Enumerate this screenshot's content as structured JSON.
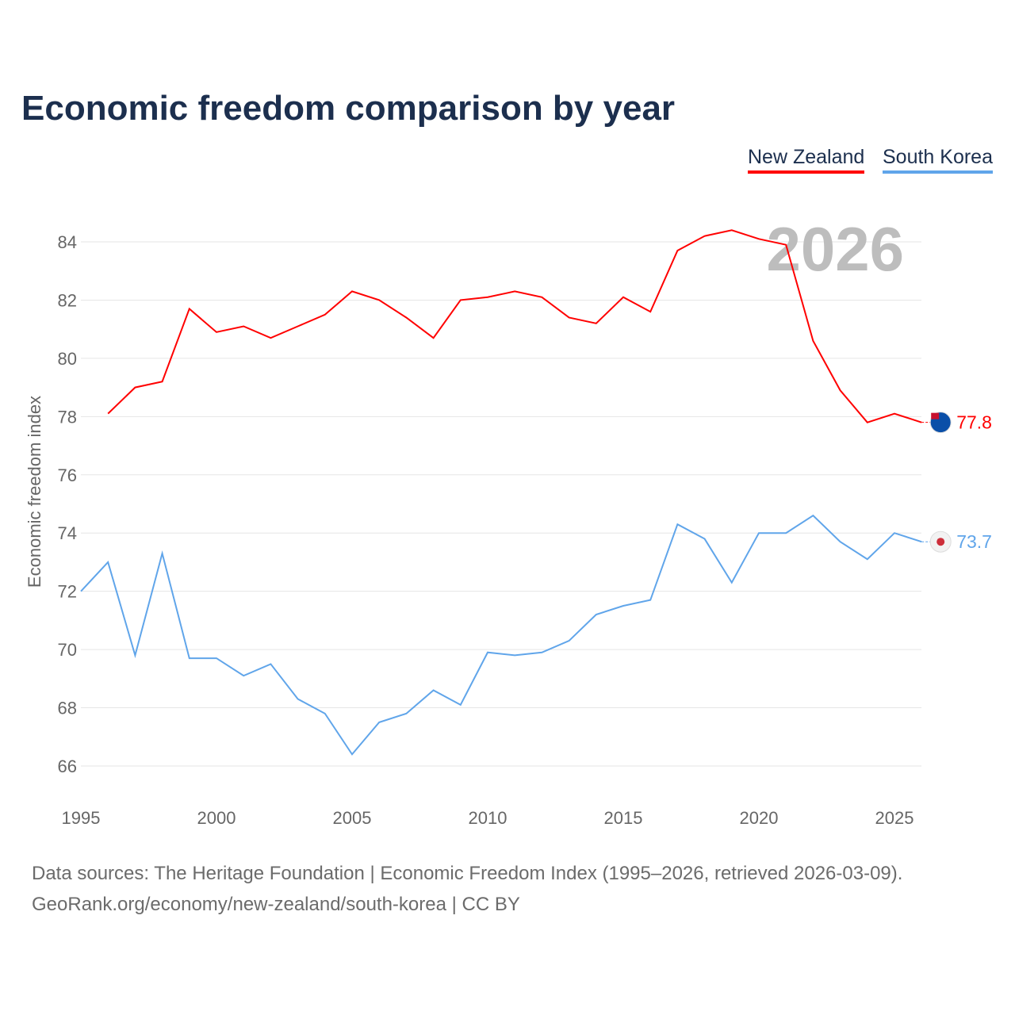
{
  "chart_data": {
    "type": "line",
    "title": "Economic freedom comparison by year",
    "xlabel": "",
    "ylabel": "Economic freedom index",
    "xlim": [
      1995,
      2026
    ],
    "ylim": [
      65,
      85.5
    ],
    "x_ticks": [
      "1995",
      "2000",
      "2005",
      "2010",
      "2015",
      "2020",
      "2025"
    ],
    "y_ticks": [
      "66",
      "68",
      "70",
      "72",
      "74",
      "76",
      "78",
      "80",
      "82",
      "84"
    ],
    "grid": true,
    "year_watermark": "2026",
    "series": [
      {
        "name": "New Zealand",
        "color": "#ff0000",
        "end_label": "77.8",
        "x": [
          1996,
          1997,
          1998,
          1999,
          2000,
          2001,
          2002,
          2003,
          2004,
          2005,
          2006,
          2007,
          2008,
          2009,
          2010,
          2011,
          2012,
          2013,
          2014,
          2015,
          2016,
          2017,
          2018,
          2019,
          2020,
          2021,
          2022,
          2023,
          2024,
          2025,
          2026
        ],
        "values": [
          78.1,
          79.0,
          79.2,
          81.7,
          80.9,
          81.1,
          80.7,
          81.1,
          81.5,
          82.3,
          82.0,
          81.4,
          80.7,
          82.0,
          82.1,
          82.3,
          82.1,
          81.4,
          81.2,
          82.1,
          81.6,
          83.7,
          84.2,
          84.4,
          84.1,
          83.9,
          80.6,
          78.9,
          77.8,
          78.1,
          77.8
        ]
      },
      {
        "name": "South Korea",
        "color": "#60a5ea",
        "end_label": "73.7",
        "x": [
          1995,
          1996,
          1997,
          1998,
          1999,
          2000,
          2001,
          2002,
          2003,
          2004,
          2005,
          2006,
          2007,
          2008,
          2009,
          2010,
          2011,
          2012,
          2013,
          2014,
          2015,
          2016,
          2017,
          2018,
          2019,
          2020,
          2021,
          2022,
          2023,
          2024,
          2025,
          2026
        ],
        "values": [
          72.0,
          73.0,
          69.8,
          73.3,
          69.7,
          69.7,
          69.1,
          69.5,
          68.3,
          67.8,
          66.4,
          67.5,
          67.8,
          68.6,
          68.1,
          69.9,
          69.8,
          69.9,
          70.3,
          71.2,
          71.5,
          71.7,
          74.3,
          73.8,
          72.3,
          74.0,
          74.0,
          74.6,
          73.7,
          73.1,
          74.0,
          73.7
        ]
      }
    ]
  },
  "footer": {
    "line1": "Data sources: The Heritage Foundation | Economic Freedom Index (1995–2026, retrieved 2026-03-09).",
    "line2": "GeoRank.org/economy/new-zealand/south-korea | CC BY"
  }
}
